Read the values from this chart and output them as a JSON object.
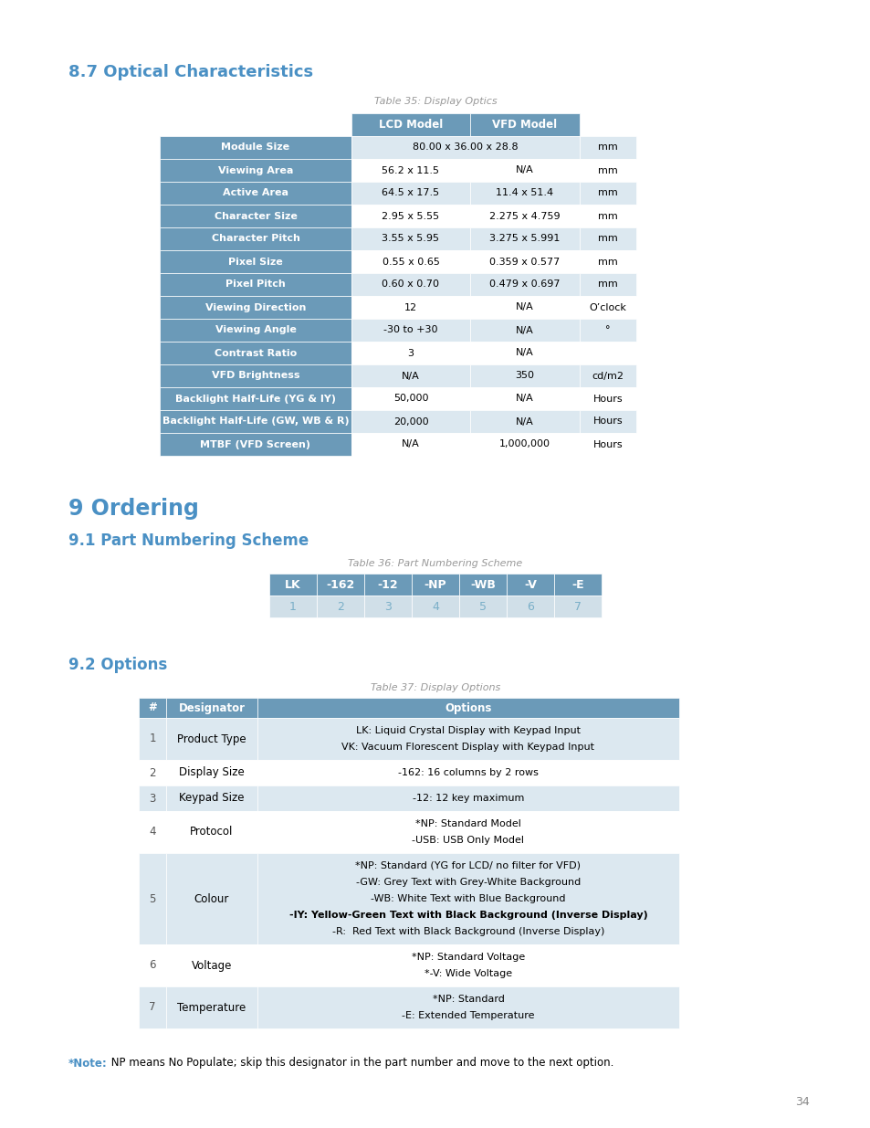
{
  "page_bg": "#ffffff",
  "section1_title": "8.7 Optical Characteristics",
  "table1_caption": "Table 35: Display Optics",
  "table1_rows": [
    [
      "Module Size",
      "80.00 x 36.00 x 28.8",
      "",
      "mm"
    ],
    [
      "Viewing Area",
      "56.2 x 11.5",
      "N/A",
      "mm"
    ],
    [
      "Active Area",
      "64.5 x 17.5",
      "11.4 x 51.4",
      "mm"
    ],
    [
      "Character Size",
      "2.95 x 5.55",
      "2.275 x 4.759",
      "mm"
    ],
    [
      "Character Pitch",
      "3.55 x 5.95",
      "3.275 x 5.991",
      "mm"
    ],
    [
      "Pixel Size",
      "0.55 x 0.65",
      "0.359 x 0.577",
      "mm"
    ],
    [
      "Pixel Pitch",
      "0.60 x 0.70",
      "0.479 x 0.697",
      "mm"
    ],
    [
      "Viewing Direction",
      "12",
      "N/A",
      "O’clock"
    ],
    [
      "Viewing Angle",
      "-30 to +30",
      "N/A",
      "°"
    ],
    [
      "Contrast Ratio",
      "3",
      "N/A",
      ""
    ],
    [
      "VFD Brightness",
      "N/A",
      "350",
      "cd/m2"
    ],
    [
      "Backlight Half-Life (YG & IY)",
      "50,000",
      "N/A",
      "Hours"
    ],
    [
      "Backlight Half-Life (GW, WB & R)",
      "20,000",
      "N/A",
      "Hours"
    ],
    [
      "MTBF (VFD Screen)",
      "N/A",
      "1,000,000",
      "Hours"
    ]
  ],
  "header_bg": "#6b9ab8",
  "header_fg": "#ffffff",
  "row_bg_odd": "#dce8f0",
  "row_bg_even": "#ffffff",
  "row_fg": "#000000",
  "section2_title": "9 Ordering",
  "section2_subtitle": "9.1 Part Numbering Scheme",
  "table2_caption": "Table 36: Part Numbering Scheme",
  "table2_row1": [
    "LK",
    "-162",
    "-12",
    "-NP",
    "-WB",
    "-V",
    "-E"
  ],
  "table2_row2": [
    "1",
    "2",
    "3",
    "4",
    "5",
    "6",
    "7"
  ],
  "table2_header_bg": "#6b9ab8",
  "table2_header_fg": "#ffffff",
  "table2_num_bg": "#d0dfe8",
  "table2_num_fg": "#7aafc8",
  "section3_subtitle": "9.2 Options",
  "table3_caption": "Table 37: Display Options",
  "table3_headers": [
    "#",
    "Designator",
    "Options"
  ],
  "table3_rows": [
    [
      "1",
      "Product Type",
      "LK: Liquid Crystal Display with Keypad Input\nVK: Vacuum Florescent Display with Keypad Input"
    ],
    [
      "2",
      "Display Size",
      "-162: 16 columns by 2 rows"
    ],
    [
      "3",
      "Keypad Size",
      "-12: 12 key maximum"
    ],
    [
      "4",
      "Protocol",
      "*NP: Standard Model\n-USB: USB Only Model"
    ],
    [
      "5",
      "Colour",
      "*NP: Standard (YG for LCD/ no filter for VFD)\n-GW: Grey Text with Grey-White Background\n-WB: White Text with Blue Background\n-IY: Yellow-Green Text with Black Background (Inverse Display)\n-R:  Red Text with Black Background (Inverse Display)"
    ],
    [
      "6",
      "Voltage",
      "*NP: Standard Voltage\n*-V: Wide Voltage"
    ],
    [
      "7",
      "Temperature",
      "*NP: Standard\n-E: Extended Temperature"
    ]
  ],
  "table3_header_bg": "#6b9ab8",
  "table3_header_fg": "#ffffff",
  "table3_row_bg_odd": "#dce8f0",
  "table3_row_bg_even": "#ffffff",
  "note_text": "*Note: NP means No Populate; skip this designator in the part number and move to the next option.",
  "note_star_color": "#4a90c4",
  "section_title_color": "#4a90c4",
  "caption_color": "#999999",
  "page_number": "34",
  "subheading_color": "#4a90c4"
}
